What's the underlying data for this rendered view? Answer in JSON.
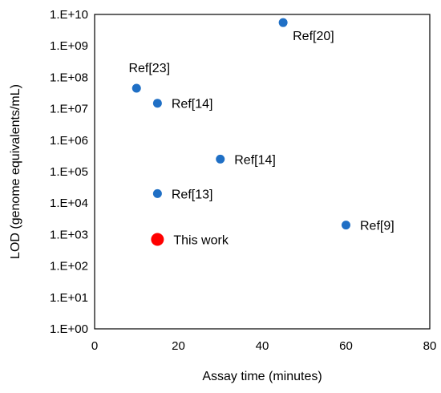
{
  "chart_data": {
    "type": "scatter",
    "title": "",
    "xlabel": "Assay time (minutes)",
    "ylabel": "LOD (genome equivalents/mL)",
    "xlim": [
      0,
      80
    ],
    "ylim": [
      1,
      10000000000
    ],
    "y_scale": "log",
    "grid": false,
    "x_ticks": [
      0,
      20,
      40,
      60,
      80
    ],
    "x_tick_labels": [
      "0",
      "20",
      "40",
      "60",
      "80"
    ],
    "y_ticks": [
      1,
      10,
      100,
      1000,
      10000,
      100000,
      1000000,
      10000000,
      100000000,
      1000000000,
      10000000000
    ],
    "y_tick_labels": [
      "1.E+00",
      "1.E+01",
      "1.E+02",
      "1.E+03",
      "1.E+04",
      "1.E+05",
      "1.E+06",
      "1.E+07",
      "1.E+08",
      "1.E+09",
      "1.E+10"
    ],
    "points": [
      {
        "x": 10,
        "y": 45000000,
        "label": "Ref[23]",
        "color": "#1f6fc5",
        "highlight": false,
        "label_pos": "above"
      },
      {
        "x": 15,
        "y": 15000000,
        "label": "Ref[14]",
        "color": "#1f6fc5",
        "highlight": false,
        "label_pos": "right"
      },
      {
        "x": 45,
        "y": 5500000000,
        "label": "Ref[20]",
        "color": "#1f6fc5",
        "highlight": false,
        "label_pos": "below-right"
      },
      {
        "x": 30,
        "y": 250000,
        "label": "Ref[14]",
        "color": "#1f6fc5",
        "highlight": false,
        "label_pos": "right"
      },
      {
        "x": 15,
        "y": 20000,
        "label": "Ref[13]",
        "color": "#1f6fc5",
        "highlight": false,
        "label_pos": "right"
      },
      {
        "x": 60,
        "y": 2000,
        "label": "Ref[9]",
        "color": "#1f6fc5",
        "highlight": false,
        "label_pos": "right"
      },
      {
        "x": 15,
        "y": 700,
        "label": "This work",
        "color": "#ff0000",
        "highlight": true,
        "label_pos": "right"
      }
    ]
  }
}
